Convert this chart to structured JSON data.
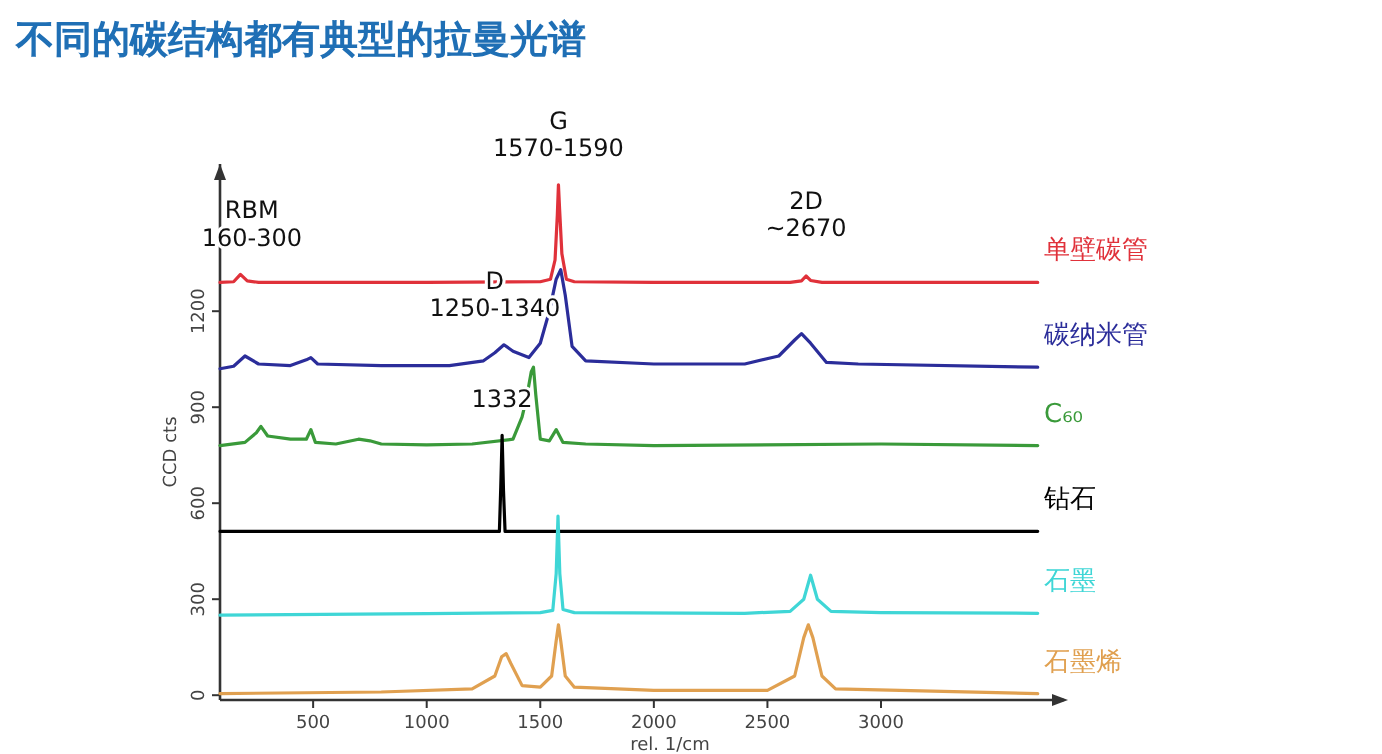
{
  "chart_data": {
    "type": "line",
    "title": "不同的碳结构都有典型的拉曼光谱",
    "xlabel": "rel. 1/cm",
    "ylabel": "CCD cts",
    "xlim": [
      90,
      3700
    ],
    "ylim": [
      -15,
      1660
    ],
    "xticks": [
      500,
      1000,
      1500,
      2000,
      2500,
      3000
    ],
    "yticks": [
      0,
      300,
      600,
      900,
      1200
    ],
    "legend": false,
    "grid": false,
    "series": [
      {
        "name": "单壁碳管",
        "color": "#e0313a",
        "x": [
          90,
          150,
          180,
          210,
          260,
          1000,
          1500,
          1545,
          1565,
          1575,
          1580,
          1585,
          1595,
          1615,
          1650,
          2000,
          2600,
          2650,
          2670,
          2690,
          2740,
          3690
        ],
        "values": [
          1290,
          1292,
          1315,
          1295,
          1290,
          1290,
          1292,
          1300,
          1360,
          1500,
          1595,
          1520,
          1380,
          1300,
          1292,
          1290,
          1290,
          1295,
          1310,
          1296,
          1290,
          1290
        ]
      },
      {
        "name": "碳纳米管",
        "color": "#2b2d9a",
        "x": [
          90,
          150,
          200,
          260,
          400,
          470,
          490,
          520,
          800,
          1100,
          1250,
          1300,
          1340,
          1380,
          1450,
          1500,
          1540,
          1570,
          1590,
          1610,
          1640,
          1700,
          2000,
          2400,
          2550,
          2620,
          2650,
          2690,
          2760,
          2900,
          3690
        ],
        "values": [
          1020,
          1028,
          1060,
          1035,
          1030,
          1048,
          1055,
          1035,
          1030,
          1030,
          1045,
          1070,
          1095,
          1075,
          1055,
          1100,
          1200,
          1300,
          1330,
          1250,
          1090,
          1045,
          1035,
          1035,
          1060,
          1110,
          1130,
          1100,
          1040,
          1035,
          1025
        ]
      },
      {
        "name": "C₆₀",
        "color": "#3a9a3a",
        "x": [
          90,
          200,
          250,
          270,
          300,
          400,
          470,
          490,
          510,
          600,
          700,
          750,
          800,
          1000,
          1200,
          1380,
          1420,
          1440,
          1460,
          1470,
          1480,
          1500,
          1540,
          1570,
          1600,
          1700,
          2000,
          3000,
          3690
        ],
        "values": [
          780,
          790,
          820,
          840,
          810,
          800,
          800,
          830,
          790,
          785,
          800,
          795,
          785,
          782,
          785,
          800,
          870,
          930,
          1010,
          1025,
          940,
          800,
          795,
          830,
          790,
          785,
          780,
          785,
          780
        ]
      },
      {
        "name": "钻石",
        "color": "#000000",
        "x": [
          90,
          1320,
          1326,
          1332,
          1338,
          1345,
          3690
        ],
        "values": [
          512,
          512,
          650,
          812,
          640,
          512,
          512
        ]
      },
      {
        "name": "石墨",
        "color": "#3fd6d6",
        "x": [
          90,
          1000,
          1500,
          1555,
          1570,
          1578,
          1586,
          1600,
          1650,
          2400,
          2600,
          2660,
          2690,
          2720,
          2780,
          3000,
          3690
        ],
        "values": [
          250,
          255,
          258,
          265,
          380,
          560,
          380,
          268,
          258,
          256,
          262,
          300,
          375,
          300,
          262,
          258,
          256
        ]
      },
      {
        "name": "石墨烯",
        "color": "#e0a050",
        "x": [
          90,
          800,
          1200,
          1300,
          1330,
          1350,
          1370,
          1420,
          1500,
          1550,
          1570,
          1580,
          1590,
          1610,
          1650,
          2000,
          2500,
          2620,
          2660,
          2680,
          2700,
          2740,
          2800,
          3690
        ],
        "values": [
          5,
          10,
          20,
          60,
          120,
          130,
          100,
          30,
          25,
          60,
          170,
          220,
          170,
          60,
          25,
          15,
          15,
          60,
          180,
          220,
          180,
          60,
          20,
          5
        ]
      }
    ],
    "annotations": [
      {
        "text": "RBM\n160-300",
        "x": 230,
        "y": 1315
      },
      {
        "text": "G\n1570-1590",
        "x": 1580,
        "y": 1595
      },
      {
        "text": "D\n1250-1340",
        "x": 1300,
        "y": 1095
      },
      {
        "text": "1332",
        "x": 1332,
        "y": 812
      },
      {
        "text": "2D\n~2670",
        "x": 2670,
        "y": 1345
      }
    ]
  }
}
